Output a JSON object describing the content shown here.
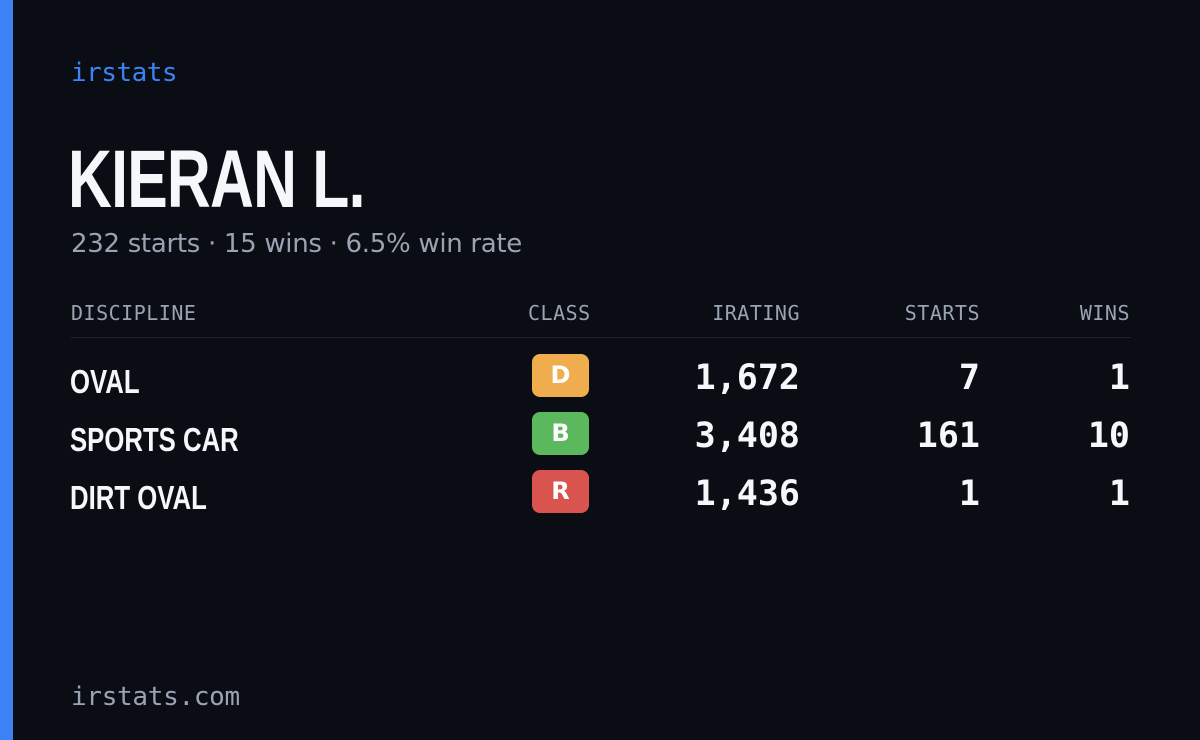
{
  "brand": "irstats",
  "driver": {
    "name": "KIERAN L.",
    "summary": "232 starts · 15 wins · 6.5% win rate"
  },
  "table": {
    "headers": {
      "discipline": "DISCIPLINE",
      "class": "CLASS",
      "irating": "IRATING",
      "starts": "STARTS",
      "wins": "WINS"
    },
    "rows": [
      {
        "discipline": "OVAL",
        "class": "D",
        "class_color": "#f0ad4e",
        "irating": "1,672",
        "starts": "7",
        "wins": "1"
      },
      {
        "discipline": "SPORTS CAR",
        "class": "B",
        "class_color": "#5cb85c",
        "irating": "3,408",
        "starts": "161",
        "wins": "10"
      },
      {
        "discipline": "DIRT OVAL",
        "class": "R",
        "class_color": "#d9534f",
        "irating": "1,436",
        "starts": "1",
        "wins": "1"
      }
    ]
  },
  "footer": {
    "url": "irstats.com"
  },
  "colors": {
    "accent": "#3d82f5",
    "background": "#0a0d14",
    "muted_text": "#9aa3b2"
  }
}
